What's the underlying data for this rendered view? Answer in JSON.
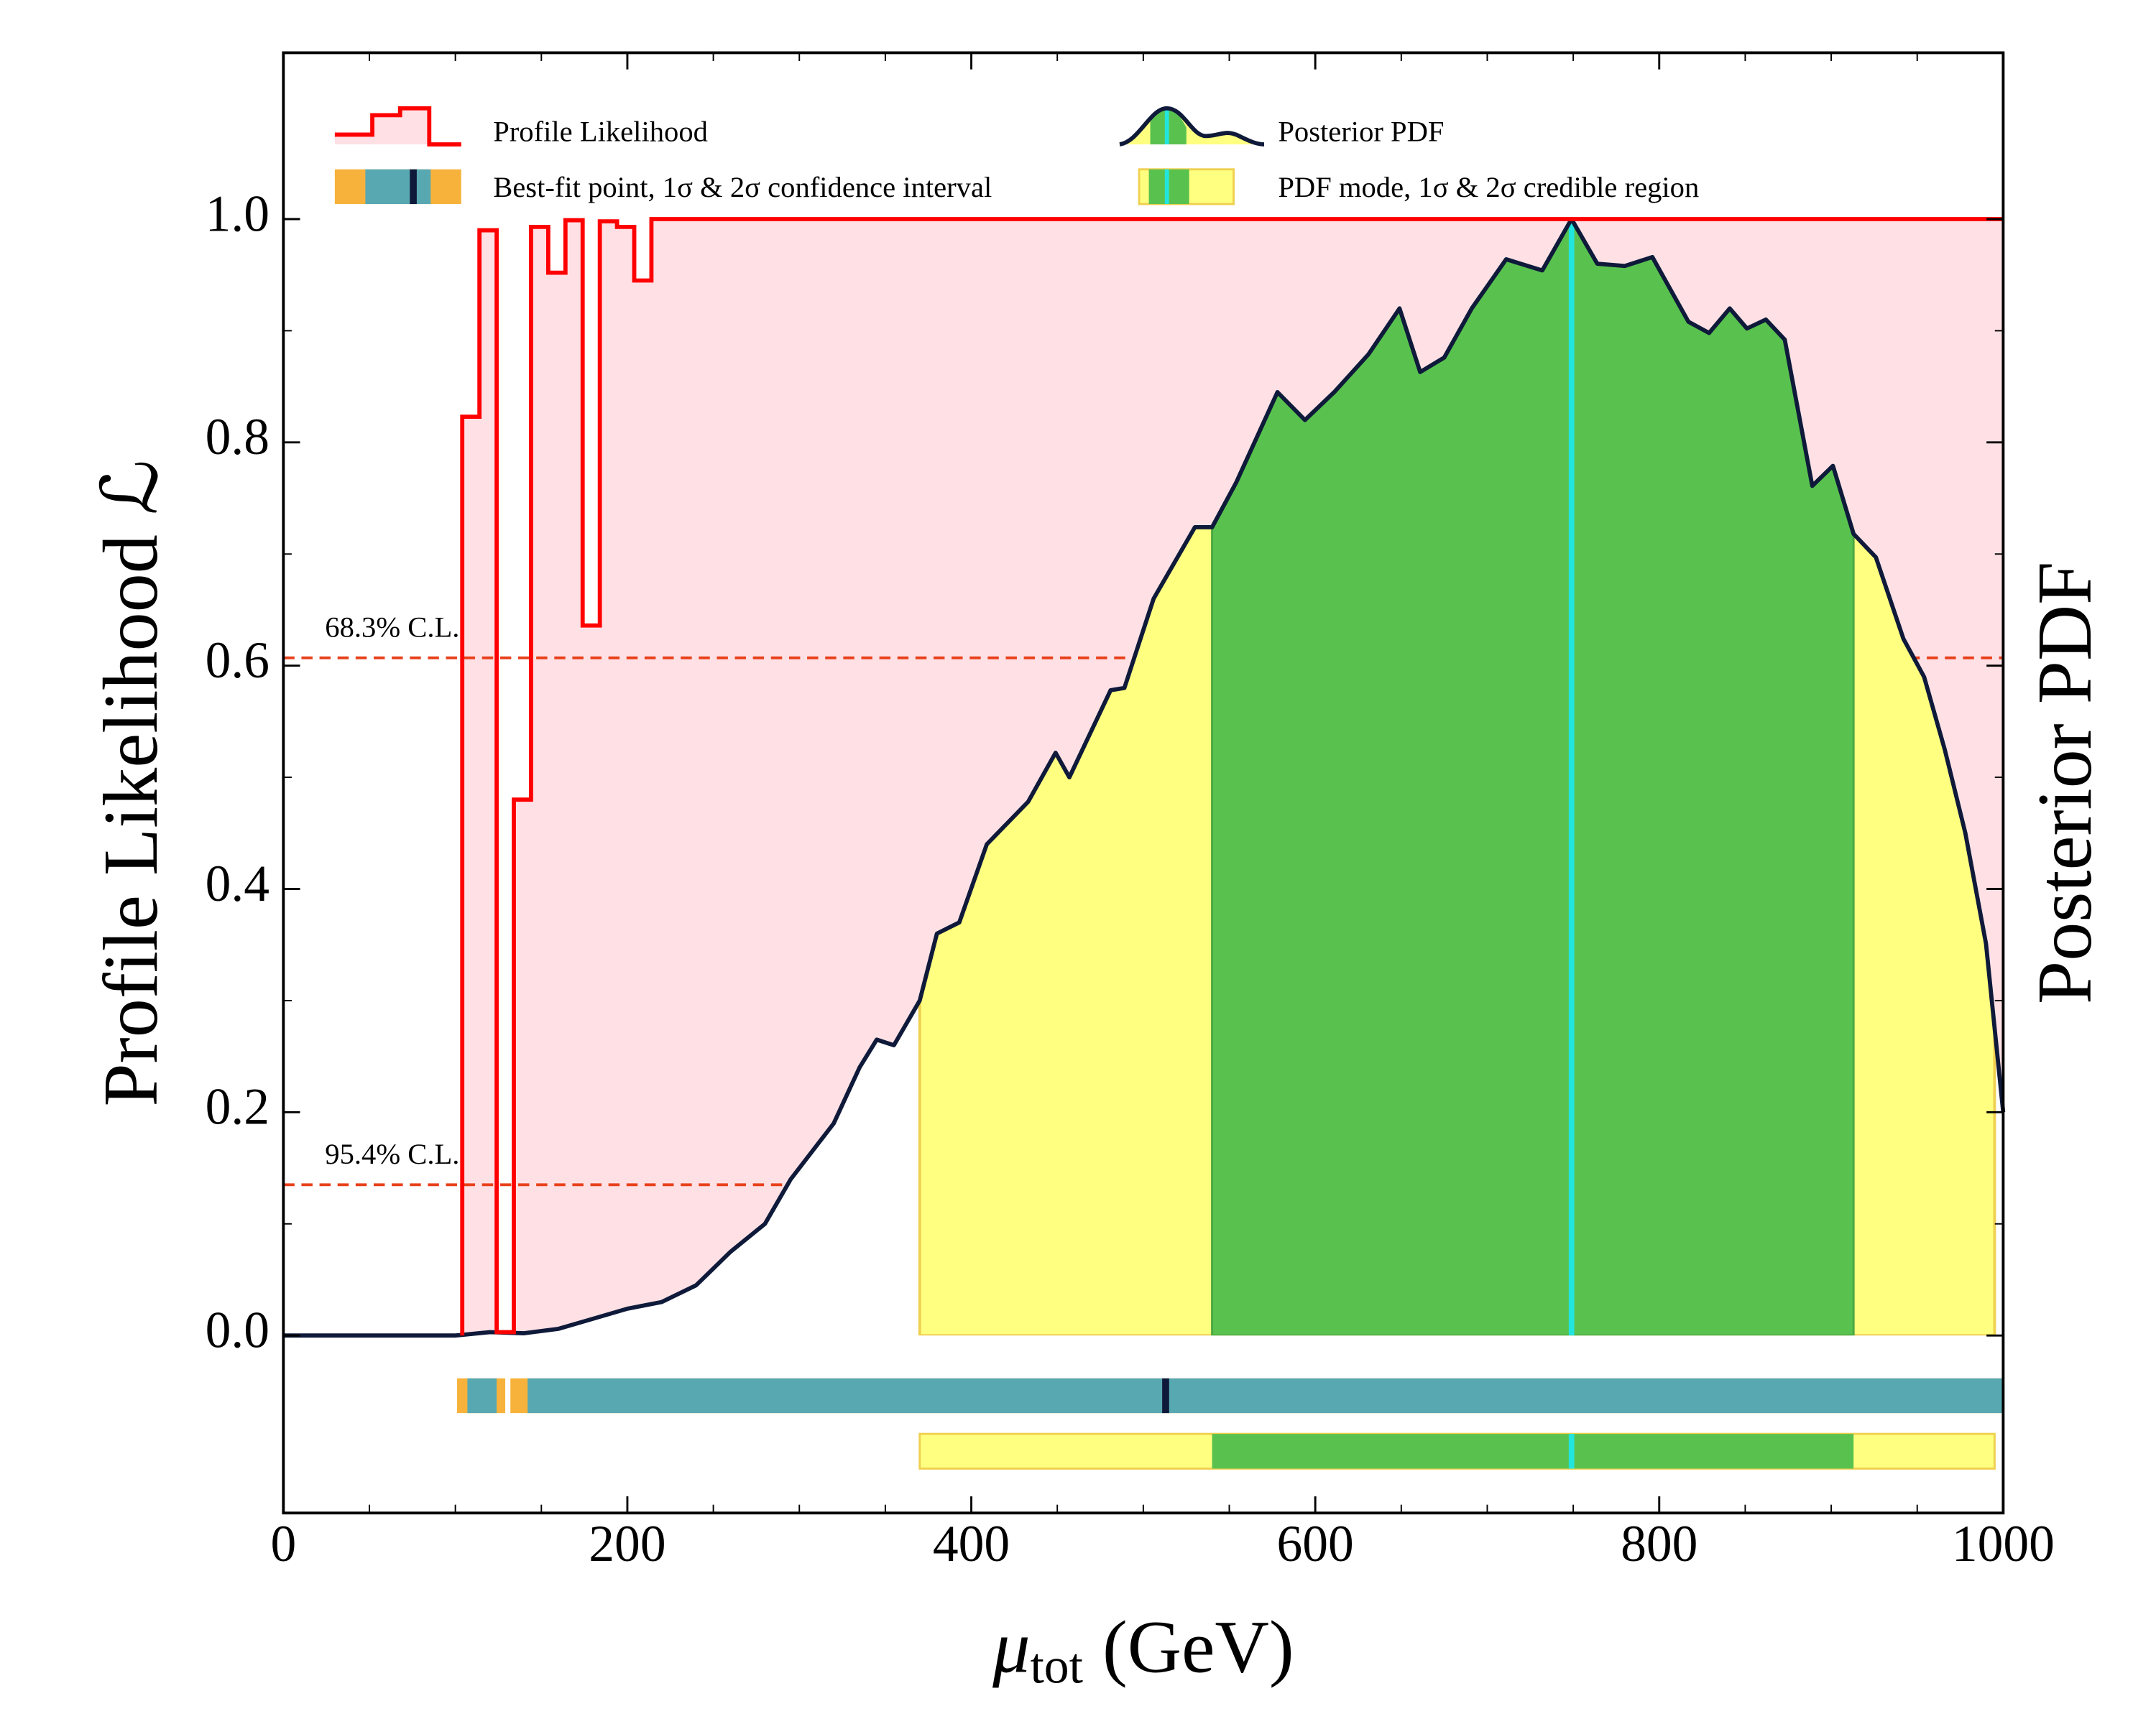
{
  "chart_data": {
    "type": "line",
    "xlabel": {
      "symbol": "μ",
      "subscript": "tot",
      "unit": "(GeV)"
    },
    "ylabel": "Profile Likelihood ℒ",
    "y2label": "Posterior PDF",
    "xlim": [
      0,
      1000
    ],
    "xticks": [
      0,
      200,
      400,
      600,
      800,
      1000
    ],
    "ylim": [
      -0.159,
      1.149
    ],
    "yticks": [
      {
        "value": 0,
        "label": "0.0"
      },
      0.2,
      0.4,
      0.6,
      0.8,
      {
        "value": 1,
        "label": "1.0"
      }
    ],
    "series": [
      {
        "name": "Profile Likelihood",
        "color": "#ff0000",
        "fill": "#ffe1e5",
        "bins": [
          104,
          114,
          124,
          134,
          144,
          154,
          164,
          174,
          184,
          194,
          204,
          214,
          1000
        ],
        "values": [
          0.823,
          0.99,
          0.003,
          0.48,
          0.993,
          0.952,
          0.999,
          0.636,
          0.998,
          0.993,
          0.945,
          1.0
        ]
      },
      {
        "name": "Posterior PDF",
        "color": "#0f1a3a",
        "x": [
          0,
          100,
          120,
          140,
          160,
          180,
          200,
          220,
          240,
          260,
          280,
          295,
          320,
          335,
          345,
          355,
          370,
          380,
          393,
          409,
          433,
          449,
          457,
          481,
          489,
          506,
          530,
          540,
          554,
          578,
          594,
          611,
          631,
          649,
          661,
          675,
          691,
          711,
          732,
          749,
          764,
          780,
          796,
          817,
          829,
          841,
          851,
          862,
          873,
          889,
          901,
          913,
          926,
          942,
          954,
          966,
          978,
          990,
          1000
        ],
        "values": [
          0,
          0,
          0.003,
          0.002,
          0.006,
          0.015,
          0.024,
          0.03,
          0.045,
          0.075,
          0.1,
          0.14,
          0.19,
          0.24,
          0.265,
          0.26,
          0.3,
          0.36,
          0.37,
          0.44,
          0.478,
          0.522,
          0.5,
          0.578,
          0.58,
          0.66,
          0.724,
          0.724,
          0.764,
          0.845,
          0.82,
          0.845,
          0.879,
          0.92,
          0.863,
          0.876,
          0.92,
          0.964,
          0.954,
          1.0,
          0.96,
          0.958,
          0.966,
          0.908,
          0.898,
          0.92,
          0.902,
          0.91,
          0.892,
          0.761,
          0.779,
          0.718,
          0.697,
          0.624,
          0.59,
          0.525,
          0.45,
          0.351,
          0.2
        ]
      }
    ],
    "cl_lines": [
      {
        "level": 0.607,
        "label": "68.3% C.L."
      },
      {
        "level": 0.135,
        "label": "95.4% C.L."
      }
    ],
    "cl_color": "#e8401a",
    "confidence": {
      "name": "Best-fit point, 1σ & 2σ confidence interval",
      "best_fit": 513,
      "sigma1": [
        [
          107,
          124
        ],
        [
          142,
          1000
        ]
      ],
      "sigma2": [
        [
          101,
          129
        ],
        [
          132,
          1000
        ]
      ],
      "sigma1_color": "#58a8b2",
      "sigma2_color": "#f7b23b",
      "best_fit_color": "#0f1a3a"
    },
    "credible": {
      "name": "PDF mode, 1σ & 2σ credible region",
      "mode": 749,
      "sigma1": [
        540,
        913
      ],
      "sigma2": [
        370,
        995
      ],
      "sigma1_color": "#59c24f",
      "sigma2_color": "#ffff80",
      "mode_color": "#22e5e0"
    }
  }
}
